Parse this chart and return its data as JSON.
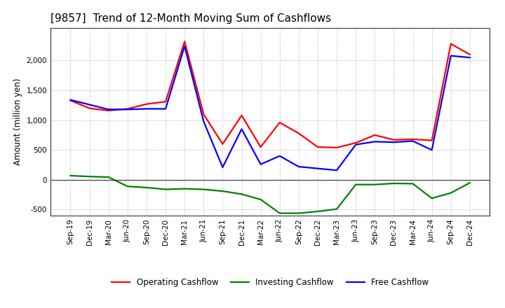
{
  "title": "[9857]  Trend of 12-Month Moving Sum of Cashflows",
  "ylabel": "Amount (million yen)",
  "background_color": "#ffffff",
  "grid_color": "#b0b0b0",
  "x_labels": [
    "Sep-19",
    "Dec-19",
    "Mar-20",
    "Jun-20",
    "Sep-20",
    "Dec-20",
    "Mar-21",
    "Jun-21",
    "Sep-21",
    "Dec-21",
    "Mar-22",
    "Jun-22",
    "Sep-22",
    "Dec-22",
    "Mar-23",
    "Jun-23",
    "Sep-23",
    "Dec-23",
    "Mar-24",
    "Jun-24",
    "Sep-24",
    "Dec-24"
  ],
  "operating_cashflow": [
    1330,
    1200,
    1160,
    1190,
    1270,
    1310,
    2320,
    1100,
    600,
    1080,
    550,
    960,
    780,
    550,
    540,
    620,
    750,
    670,
    680,
    660,
    2280,
    2100
  ],
  "investing_cashflow": [
    70,
    55,
    45,
    -110,
    -130,
    -160,
    -150,
    -160,
    -190,
    -240,
    -330,
    -560,
    -560,
    -530,
    -490,
    -80,
    -80,
    -60,
    -65,
    -310,
    -220,
    -50
  ],
  "free_cashflow": [
    1340,
    1260,
    1180,
    1180,
    1190,
    1190,
    2240,
    980,
    210,
    850,
    260,
    400,
    220,
    190,
    160,
    590,
    640,
    630,
    650,
    500,
    2080,
    2050
  ],
  "ylim": [
    -600,
    2550
  ],
  "yticks": [
    -500,
    0,
    500,
    1000,
    1500,
    2000
  ],
  "operating_color": "#ff0000",
  "investing_color": "#008000",
  "free_color": "#0000ff",
  "line_width": 1.6,
  "title_fontsize": 11,
  "ylabel_fontsize": 8.5,
  "tick_fontsize": 7.5,
  "legend_fontsize": 8.5
}
